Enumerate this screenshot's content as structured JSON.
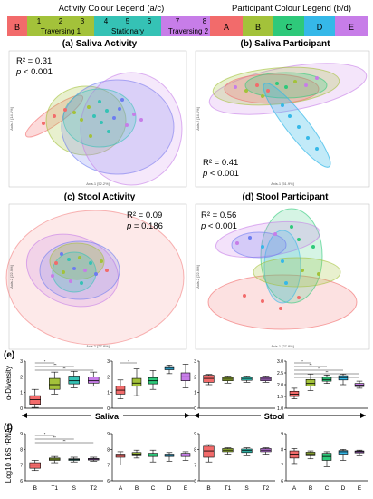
{
  "legends": {
    "activity": {
      "title": "Activity Colour Legend (a/c)",
      "segments": [
        {
          "label": "B",
          "color": "#f26b6b"
        },
        {
          "label": "1",
          "color": "#a3c23a"
        },
        {
          "label": "2",
          "color": "#a3c23a"
        },
        {
          "label": "3",
          "color": "#a3c23a"
        },
        {
          "label": "4",
          "color": "#35c2b5"
        },
        {
          "label": "5",
          "color": "#35c2b5"
        },
        {
          "label": "6",
          "color": "#35c2b5"
        },
        {
          "label": "7",
          "color": "#c77de8"
        },
        {
          "label": "8",
          "color": "#c77de8"
        }
      ],
      "groups": [
        {
          "label": "Traversing 1"
        },
        {
          "label": "Stationary"
        },
        {
          "label": "Traversing 2"
        }
      ]
    },
    "participant": {
      "title": "Participant Colour Legend (b/d)",
      "segments": [
        {
          "label": "A",
          "color": "#f26b6b"
        },
        {
          "label": "B",
          "color": "#a3c23a"
        },
        {
          "label": "C",
          "color": "#2ec97a"
        },
        {
          "label": "D",
          "color": "#35b8e8"
        },
        {
          "label": "E",
          "color": "#c77de8"
        }
      ]
    }
  },
  "pcoa_panels": [
    {
      "title": "(a) Saliva Activity",
      "stat1": "R² = 0.31",
      "stat2_prefix": "p",
      "stat2_value": " < 0.001",
      "xlabel": "Axis.1 [52.2%]",
      "ylabel": "Axis.2 [14.1%]"
    },
    {
      "title": "(b) Saliva Participant",
      "stat1": "R² = 0.41",
      "stat2_prefix": "p",
      "stat2_value": " < 0.001",
      "xlabel": "Axis.1 [51.9%]",
      "ylabel": "Axis.2 [14.1%]"
    },
    {
      "title": "(c) Stool Activity",
      "stat1": "R² = 0.09",
      "stat2_prefix": "p",
      "stat2_value": " = 0.186",
      "xlabel": "Axis.1 [27.8%]",
      "ylabel": "Axis.2 [22.9%]"
    },
    {
      "title": "(d) Stool Participant",
      "stat1": "R² = 0.56",
      "stat2_prefix": "p",
      "stat2_value": " < 0.001",
      "xlabel": "Axis.1 [27.8%]",
      "ylabel": "Axis.2 [22.9%]"
    }
  ],
  "boxplots": {
    "row_e_label": "(e)",
    "row_f_label": "(f)",
    "row_e_ylabel": "α-Diversity",
    "row_f_ylabel": "Log10 16S rRNA",
    "saliva_label": "Saliva",
    "stool_label": "Stool",
    "activity_categories": [
      "B",
      "T1",
      "S",
      "T2"
    ],
    "participant_categories": [
      "A",
      "B",
      "C",
      "D",
      "E"
    ],
    "activity_colors": [
      "#f26b6b",
      "#a3c23a",
      "#35c2b5",
      "#c77de8"
    ],
    "participant_colors": [
      "#f26b6b",
      "#a3c23a",
      "#2ec97a",
      "#35b8e8",
      "#c77de8"
    ]
  },
  "chart_data": [
    {
      "type": "box",
      "panel": "e-saliva-activity",
      "ylim": [
        0,
        3
      ],
      "yticks": [
        "0",
        "1",
        "2",
        "3"
      ],
      "categories": [
        "B",
        "T1",
        "S",
        "T2"
      ],
      "boxes": [
        {
          "min": 0.05,
          "q1": 0.25,
          "median": 0.55,
          "q3": 0.8,
          "max": 1.2
        },
        {
          "min": 0.9,
          "q1": 1.2,
          "median": 1.5,
          "q3": 1.9,
          "max": 2.3
        },
        {
          "min": 1.3,
          "q1": 1.55,
          "median": 1.75,
          "q3": 2.05,
          "max": 2.35
        },
        {
          "min": 1.4,
          "q1": 1.6,
          "median": 1.75,
          "q3": 2.0,
          "max": 2.3
        }
      ],
      "significance": [
        "*",
        "***",
        "**"
      ]
    },
    {
      "type": "box",
      "panel": "e-saliva-participant",
      "ylim": [
        0,
        3
      ],
      "yticks": [
        "0",
        "1",
        "2",
        "3"
      ],
      "categories": [
        "A",
        "B",
        "C",
        "D",
        "E"
      ],
      "boxes": [
        {
          "min": 0.6,
          "q1": 0.9,
          "median": 1.15,
          "q3": 1.4,
          "max": 1.8
        },
        {
          "min": 0.8,
          "q1": 1.4,
          "median": 1.6,
          "q3": 1.9,
          "max": 2.5
        },
        {
          "min": 1.2,
          "q1": 1.55,
          "median": 1.75,
          "q3": 1.95,
          "max": 2.4
        },
        {
          "min": 2.2,
          "q1": 2.45,
          "median": 2.55,
          "q3": 2.65,
          "max": 2.75
        },
        {
          "min": 1.3,
          "q1": 1.75,
          "median": 2.0,
          "q3": 2.25,
          "max": 2.8
        }
      ],
      "significance": [
        "*"
      ]
    },
    {
      "type": "box",
      "panel": "e-stool-activity",
      "ylim": [
        0,
        3
      ],
      "yticks": [
        "0",
        "1",
        "2",
        "3"
      ],
      "categories": [
        "B",
        "T1",
        "S",
        "T2"
      ],
      "boxes": [
        {
          "min": 1.5,
          "q1": 1.65,
          "median": 1.9,
          "q3": 2.1,
          "max": 2.15
        },
        {
          "min": 1.6,
          "q1": 1.75,
          "median": 1.85,
          "q3": 1.95,
          "max": 2.05
        },
        {
          "min": 1.65,
          "q1": 1.78,
          "median": 1.9,
          "q3": 1.98,
          "max": 2.05
        },
        {
          "min": 1.65,
          "q1": 1.75,
          "median": 1.85,
          "q3": 1.95,
          "max": 2.05
        }
      ],
      "significance": []
    },
    {
      "type": "box",
      "panel": "e-stool-participant",
      "ylim": [
        1.0,
        3.0
      ],
      "yticks": [
        "1.0",
        "1.5",
        "2.0",
        "2.5",
        "3.0"
      ],
      "categories": [
        "A",
        "B",
        "C",
        "D",
        "E"
      ],
      "boxes": [
        {
          "min": 1.4,
          "q1": 1.5,
          "median": 1.6,
          "q3": 1.72,
          "max": 1.85
        },
        {
          "min": 1.75,
          "q1": 1.95,
          "median": 2.05,
          "q3": 2.22,
          "max": 2.45
        },
        {
          "min": 2.05,
          "q1": 2.15,
          "median": 2.22,
          "q3": 2.32,
          "max": 2.4
        },
        {
          "min": 2.0,
          "q1": 2.2,
          "median": 2.3,
          "q3": 2.38,
          "max": 2.45
        },
        {
          "min": 1.85,
          "q1": 1.92,
          "median": 1.98,
          "q3": 2.05,
          "max": 2.15
        }
      ],
      "significance": [
        "*",
        "**",
        "*",
        "**",
        "**"
      ]
    },
    {
      "type": "box",
      "panel": "f-saliva-activity",
      "ylim": [
        6,
        9
      ],
      "yticks": [
        "6",
        "7",
        "8",
        "9"
      ],
      "categories": [
        "B",
        "T1",
        "S",
        "T2"
      ],
      "boxes": [
        {
          "min": 6.65,
          "q1": 6.8,
          "median": 7.0,
          "q3": 7.15,
          "max": 7.3
        },
        {
          "min": 7.15,
          "q1": 7.3,
          "median": 7.38,
          "q3": 7.45,
          "max": 7.55
        },
        {
          "min": 7.2,
          "q1": 7.3,
          "median": 7.35,
          "q3": 7.4,
          "max": 7.5
        },
        {
          "min": 7.25,
          "q1": 7.32,
          "median": 7.38,
          "q3": 7.42,
          "max": 7.5
        }
      ],
      "significance": [
        "*",
        "**",
        "**"
      ]
    },
    {
      "type": "box",
      "panel": "f-saliva-participant",
      "ylim": [
        6,
        9
      ],
      "yticks": [
        "6",
        "7",
        "8",
        "9"
      ],
      "categories": [
        "A",
        "B",
        "C",
        "D",
        "E"
      ],
      "boxes": [
        {
          "min": 7.0,
          "q1": 7.5,
          "median": 7.62,
          "q3": 7.7,
          "max": 7.85
        },
        {
          "min": 7.45,
          "q1": 7.6,
          "median": 7.7,
          "q3": 7.8,
          "max": 7.95
        },
        {
          "min": 7.2,
          "q1": 7.55,
          "median": 7.65,
          "q3": 7.75,
          "max": 7.95
        },
        {
          "min": 7.25,
          "q1": 7.55,
          "median": 7.62,
          "q3": 7.7,
          "max": 7.8
        },
        {
          "min": 7.3,
          "q1": 7.55,
          "median": 7.65,
          "q3": 7.75,
          "max": 7.85
        }
      ],
      "significance": []
    },
    {
      "type": "box",
      "panel": "f-stool-activity",
      "ylim": [
        6,
        9
      ],
      "yticks": [
        "6",
        "7",
        "8",
        "9"
      ],
      "categories": [
        "B",
        "T1",
        "S",
        "T2"
      ],
      "boxes": [
        {
          "min": 7.2,
          "q1": 7.5,
          "median": 7.9,
          "q3": 8.2,
          "max": 8.3
        },
        {
          "min": 7.7,
          "q1": 7.85,
          "median": 7.95,
          "q3": 8.05,
          "max": 8.1
        },
        {
          "min": 7.6,
          "q1": 7.8,
          "median": 7.92,
          "q3": 8.02,
          "max": 8.1
        },
        {
          "min": 7.7,
          "q1": 7.85,
          "median": 7.95,
          "q3": 8.05,
          "max": 8.1
        }
      ],
      "significance": []
    },
    {
      "type": "box",
      "panel": "f-stool-participant",
      "ylim": [
        6,
        9
      ],
      "yticks": [
        "6",
        "7",
        "8",
        "9"
      ],
      "categories": [
        "A",
        "B",
        "C",
        "D",
        "E"
      ],
      "boxes": [
        {
          "min": 7.1,
          "q1": 7.45,
          "median": 7.7,
          "q3": 7.9,
          "max": 8.05
        },
        {
          "min": 7.4,
          "q1": 7.6,
          "median": 7.72,
          "q3": 7.82,
          "max": 7.9
        },
        {
          "min": 6.9,
          "q1": 7.3,
          "median": 7.55,
          "q3": 7.75,
          "max": 7.85
        },
        {
          "min": 7.3,
          "q1": 7.7,
          "median": 7.85,
          "q3": 7.92,
          "max": 8.0
        },
        {
          "min": 7.6,
          "q1": 7.78,
          "median": 7.85,
          "q3": 7.9,
          "max": 7.95
        }
      ],
      "significance": []
    }
  ]
}
